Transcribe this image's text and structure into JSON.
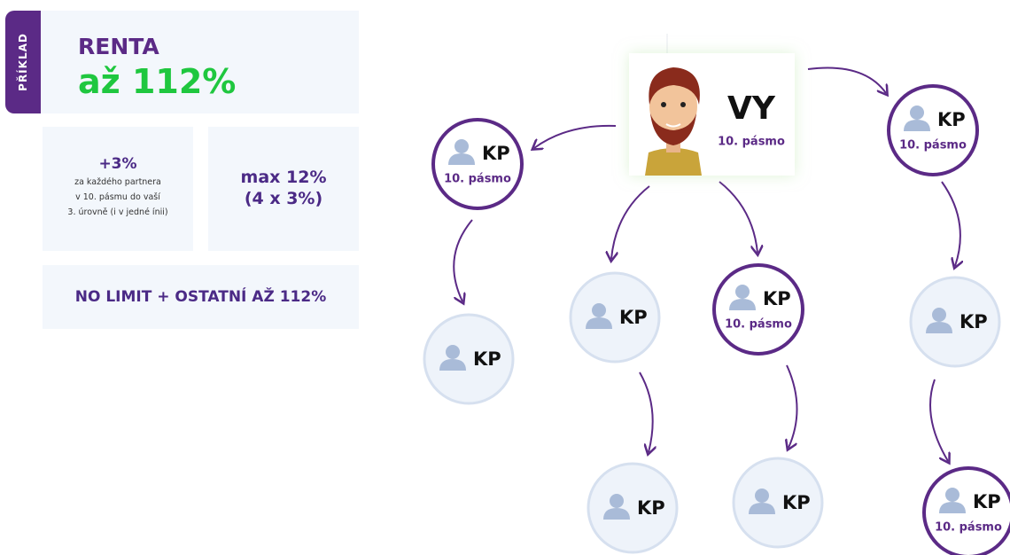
{
  "example_tag": "PŘÍKLAD",
  "header": {
    "title": "RENTA",
    "highlight": "až 112%"
  },
  "boxes": [
    {
      "title": "+3%",
      "lines": [
        "za každého partnera",
        "v 10. pásmu do vaší",
        "3. úrovně (i v jedné ínii)"
      ]
    },
    {
      "title": "max 12%",
      "lines": [
        "(4 x 3%)"
      ]
    },
    {
      "title": "NO LIMIT + OSTATNÍ AŽ 112%"
    }
  ],
  "nodes": [
    {
      "label": "VY",
      "sublabel": "10. pásmo"
    },
    {
      "label": "KP",
      "sublabel": "10. pásmo"
    },
    {
      "label": "KP",
      "sublabel": "10. pásmo"
    },
    {
      "label": "KP"
    },
    {
      "label": "KP"
    },
    {
      "label": "KP",
      "sublabel": "10. pásmo"
    },
    {
      "label": "KP"
    },
    {
      "label": "KP"
    },
    {
      "label": "KP"
    },
    {
      "label": "KP",
      "sublabel": "10. pásmo"
    }
  ]
}
